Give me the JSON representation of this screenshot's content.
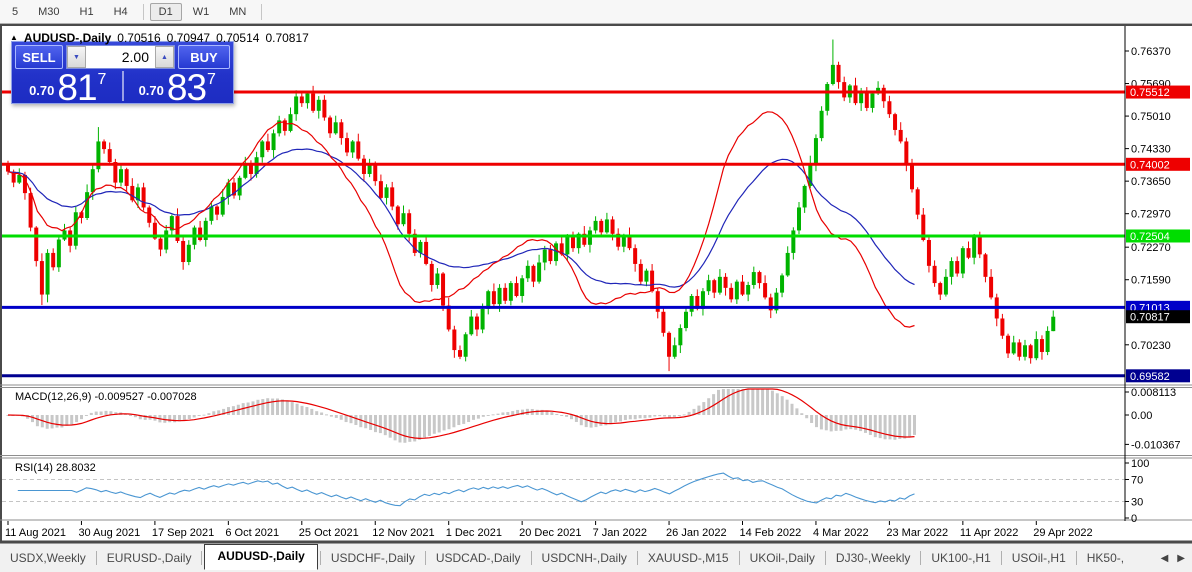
{
  "toolbar": {
    "timeframes": [
      "5",
      "M30",
      "H1",
      "H4",
      "D1",
      "W1",
      "MN"
    ],
    "active": "D1"
  },
  "chart": {
    "title": {
      "symbol": "AUDUSD-,Daily",
      "open": "0.70516",
      "high": "0.70947",
      "low": "0.70514",
      "close": "0.70817"
    },
    "axis_labels": [
      "0.76370",
      "0.75690",
      "0.75010",
      "0.74330",
      "0.73650",
      "0.72970",
      "0.72270",
      "0.71590",
      "0.70230"
    ],
    "levels": [
      {
        "price": 0.75512,
        "label": "0.75512",
        "color": "#ee0000"
      },
      {
        "price": 0.74002,
        "label": "0.74002",
        "color": "#ee0000"
      },
      {
        "price": 0.72504,
        "label": "0.72504",
        "color": "#00dd00"
      },
      {
        "price": 0.71013,
        "label": "0.71013",
        "color": "#0000c8"
      },
      {
        "price": 0.69582,
        "label": "0.69582",
        "color": "#000090"
      }
    ],
    "current_price": {
      "value": 0.70817,
      "label": "0.70817",
      "badge_color": "#000000"
    },
    "dates": [
      "11 Aug 2021",
      "30 Aug 2021",
      "17 Sep 2021",
      "6 Oct 2021",
      "25 Oct 2021",
      "12 Nov 2021",
      "1 Dec 2021",
      "20 Dec 2021",
      "7 Jan 2022",
      "26 Jan 2022",
      "14 Feb 2022",
      "4 Mar 2022",
      "23 Mar 2022",
      "11 Apr 2022",
      "29 Apr 2022"
    ]
  },
  "trade_panel": {
    "sell_label": "SELL",
    "buy_label": "BUY",
    "volume": "2.00",
    "sell_price": {
      "prefix": "0.70",
      "big": "81",
      "sup": "7"
    },
    "buy_price": {
      "prefix": "0.70",
      "big": "83",
      "sup": "7"
    }
  },
  "macd_panel": {
    "label": "MACD(12,26,9) -0.009527 -0.007028",
    "scale": [
      "0.008113",
      "0.00",
      "-0.010367"
    ]
  },
  "rsi_panel": {
    "label": "RSI(14) 28.8032",
    "scale": [
      "100",
      "70",
      "30",
      "0"
    ],
    "level_lines": [
      70,
      30
    ]
  },
  "tabs": {
    "items": [
      "USDX,Weekly",
      "EURUSD-,Daily",
      "AUDUSD-,Daily",
      "USDCHF-,Daily",
      "USDCAD-,Daily",
      "USDCNH-,Daily",
      "XAUUSD-,M15",
      "UKOil-,Daily",
      "DJ30-,Weekly",
      "UK100-,H1",
      "USOil-,H1",
      "HK50-,"
    ],
    "active_index": 2
  },
  "colors": {
    "bull": "#00b300",
    "bear": "#ee0000",
    "ma_fast": "#e80000",
    "ma_slow": "#2026b8",
    "macd_hist": "#c8c8c8",
    "macd_signal": "#e80000",
    "rsi_line": "#4a96d2",
    "rsi_grid": "#c4c4c4"
  },
  "chart_data": {
    "type": "candlestick",
    "symbol": "AUDUSD-,Daily",
    "price_range": [
      0.6939,
      0.767
    ],
    "tick_every": 13,
    "indicators": {
      "ma_fast_period": 12,
      "ma_slow_period": 30,
      "macd": [
        12,
        26,
        9
      ],
      "rsi_period": 14
    },
    "closes": [
      0.7385,
      0.7362,
      0.7378,
      0.734,
      0.7268,
      0.7198,
      0.7128,
      0.7215,
      0.7185,
      0.7243,
      0.7262,
      0.723,
      0.73,
      0.7288,
      0.7342,
      0.739,
      0.7448,
      0.7432,
      0.7405,
      0.7362,
      0.739,
      0.7355,
      0.7325,
      0.7352,
      0.731,
      0.7278,
      0.7245,
      0.7222,
      0.7262,
      0.7292,
      0.724,
      0.7196,
      0.7232,
      0.7268,
      0.7242,
      0.7282,
      0.7312,
      0.7295,
      0.7332,
      0.7362,
      0.7335,
      0.7372,
      0.7402,
      0.738,
      0.7415,
      0.7448,
      0.743,
      0.7465,
      0.7492,
      0.747,
      0.7505,
      0.7542,
      0.7528,
      0.7548,
      0.7512,
      0.7535,
      0.7498,
      0.7465,
      0.7488,
      0.7455,
      0.7425,
      0.7448,
      0.7412,
      0.738,
      0.7402,
      0.7365,
      0.733,
      0.7352,
      0.7312,
      0.7275,
      0.7298,
      0.7255,
      0.7215,
      0.7238,
      0.7192,
      0.7148,
      0.7172,
      0.7105,
      0.7055,
      0.7012,
      0.6998,
      0.7045,
      0.7082,
      0.7055,
      0.7098,
      0.7135,
      0.7108,
      0.7142,
      0.7115,
      0.7152,
      0.7125,
      0.7162,
      0.7188,
      0.7155,
      0.7195,
      0.7222,
      0.7198,
      0.7235,
      0.7212,
      0.7248,
      0.7225,
      0.7255,
      0.7232,
      0.7262,
      0.7282,
      0.7258,
      0.7285,
      0.7255,
      0.7228,
      0.7252,
      0.7225,
      0.7192,
      0.7155,
      0.7178,
      0.7135,
      0.7092,
      0.7048,
      0.6998,
      0.7022,
      0.7058,
      0.7092,
      0.7125,
      0.7098,
      0.7135,
      0.7158,
      0.7132,
      0.7165,
      0.7142,
      0.7118,
      0.7155,
      0.7128,
      0.7148,
      0.7175,
      0.7152,
      0.7122,
      0.7095,
      0.7132,
      0.7168,
      0.7215,
      0.7262,
      0.731,
      0.7355,
      0.7402,
      0.7455,
      0.7512,
      0.7568,
      0.7608,
      0.7572,
      0.754,
      0.7565,
      0.7528,
      0.7552,
      0.7518,
      0.7548,
      0.756,
      0.7532,
      0.7505,
      0.7472,
      0.7448,
      0.7402,
      0.7348,
      0.7295,
      0.7242,
      0.7188,
      0.7152,
      0.7128,
      0.7165,
      0.7198,
      0.7172,
      0.7225,
      0.7205,
      0.7248,
      0.7212,
      0.7165,
      0.7122,
      0.7078,
      0.7042,
      0.7005,
      0.7028,
      0.6998,
      0.7022,
      0.6995,
      0.7035,
      0.7008,
      0.7052,
      0.70817
    ],
    "first_open": 0.7398,
    "wick_pattern": [
      0.0016,
      0.0007,
      0.0023,
      0.0011,
      0.0019,
      0.0005,
      0.0027,
      0.0013
    ],
    "special": {
      "6": {
        "low": 0.7106
      },
      "16": {
        "high": 0.7478
      },
      "51": {
        "high": 0.7555
      },
      "80": {
        "low": 0.6993
      },
      "117": {
        "low": 0.6968
      },
      "146": {
        "high": 0.7661
      },
      "179": {
        "low": 0.699
      },
      "185": {
        "open": 0.70516,
        "high": 0.70947,
        "low": 0.70514
      }
    }
  }
}
